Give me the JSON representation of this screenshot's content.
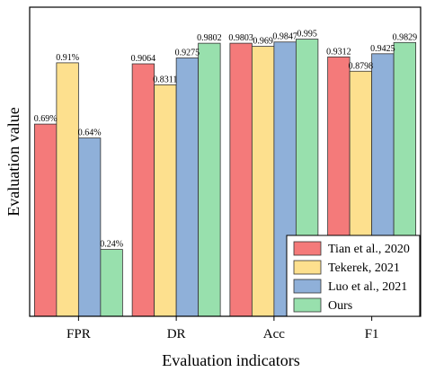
{
  "chart_data": {
    "type": "bar",
    "xlabel": "Evaluation indicators",
    "ylabel": "Evaluation value",
    "categories": [
      "FPR",
      "DR",
      "Acc",
      "F1"
    ],
    "ylim": [
      0,
      1
    ],
    "series": [
      {
        "name": "Tian et al., 2020",
        "color": "#f47a7a",
        "values": [
          0.69,
          0.9064,
          0.9803,
          0.9312
        ],
        "labels": [
          "0.69%",
          "0.9064",
          "0.9803",
          "0.9312"
        ]
      },
      {
        "name": "Tekerek, 2021",
        "color": "#fde08e",
        "values": [
          0.91,
          0.8311,
          0.969,
          0.8798
        ],
        "labels": [
          "0.91%",
          "0.8311",
          "0.969",
          "0.8798"
        ]
      },
      {
        "name": "Luo et al., 2021",
        "color": "#8fb0d9",
        "values": [
          0.64,
          0.9275,
          0.9847,
          0.9425
        ],
        "labels": [
          "0.64%",
          "0.9275",
          "0.9847",
          "0.9425"
        ]
      },
      {
        "name": "Ours",
        "color": "#98e0ad",
        "values": [
          0.24,
          0.9802,
          0.995,
          0.9829
        ],
        "labels": [
          "0.24%",
          "0.9802",
          "0.995",
          "0.9829"
        ]
      }
    ],
    "legend_position": "bottom-right",
    "grid": false
  }
}
